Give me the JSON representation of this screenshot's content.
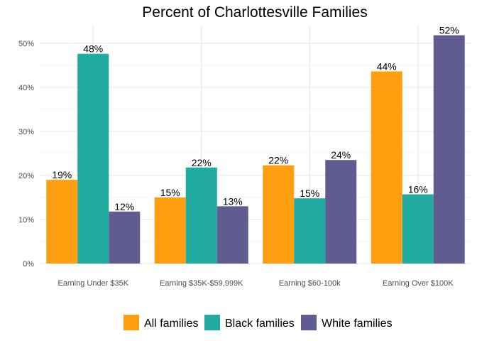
{
  "chart_data": {
    "type": "bar",
    "title": "Percent of Charlottesville Families",
    "xlabel": "",
    "ylabel": "",
    "ylim": [
      0,
      54
    ],
    "y_ticks": [
      0,
      10,
      20,
      30,
      40,
      50
    ],
    "y_tick_labels": [
      "0%",
      "10%",
      "20%",
      "30%",
      "40%",
      "50%"
    ],
    "grid": true,
    "legend_position": "bottom",
    "categories": [
      "Earning Under $35K",
      "Earning $35K-$59,999K",
      "Earning $60-100k",
      "Earning Over $100K"
    ],
    "series": [
      {
        "name": "All families",
        "color": "#FF9F10",
        "values": [
          19,
          15,
          22.3,
          43.6
        ],
        "labels": [
          "19%",
          "15%",
          "22%",
          "44%"
        ]
      },
      {
        "name": "Black families",
        "color": "#20AAA0",
        "values": [
          47.6,
          21.8,
          14.8,
          15.7
        ],
        "labels": [
          "48%",
          "22%",
          "15%",
          "16%"
        ]
      },
      {
        "name": "White families",
        "color": "#605C92",
        "values": [
          11.8,
          13,
          23.5,
          51.8
        ],
        "labels": [
          "12%",
          "13%",
          "24%",
          "52%"
        ]
      }
    ]
  }
}
